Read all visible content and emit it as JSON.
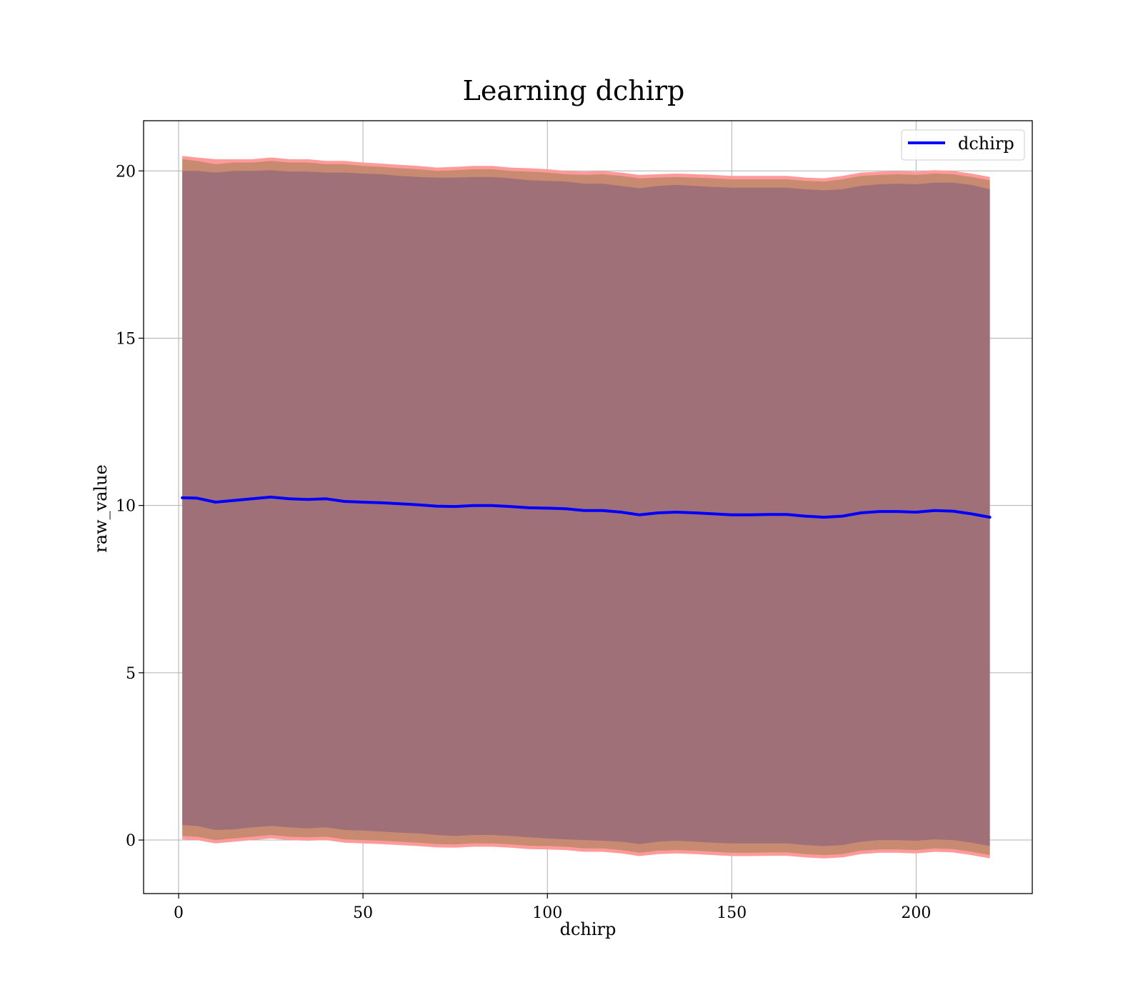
{
  "chart_data": {
    "type": "line",
    "title": "Learning dchirp",
    "xlabel": "dchirp",
    "ylabel": "raw_value",
    "xlim": [
      -9.5,
      231.5
    ],
    "ylim": [
      -1.6,
      21.5
    ],
    "xticks": [
      0,
      50,
      100,
      150,
      200
    ],
    "yticks": [
      0,
      5,
      10,
      15,
      20
    ],
    "grid": true,
    "legend": {
      "placement": "top-right",
      "entries": [
        "dchirp"
      ]
    },
    "colors": {
      "mean_line": "#0000ff",
      "band_outer": "#ff9a9a",
      "band_middle": "#c98a72",
      "band_inner": "#a07078",
      "grid": "#b0b0b0"
    },
    "series": [
      {
        "name": "dchirp",
        "x": [
          1,
          5,
          10,
          15,
          20,
          25,
          30,
          35,
          40,
          45,
          50,
          55,
          60,
          65,
          70,
          75,
          80,
          85,
          90,
          95,
          100,
          105,
          110,
          115,
          120,
          125,
          130,
          135,
          140,
          145,
          150,
          155,
          160,
          165,
          170,
          175,
          180,
          185,
          190,
          195,
          200,
          205,
          210,
          215,
          220
        ],
        "y": [
          10.23,
          10.22,
          10.1,
          10.15,
          10.2,
          10.25,
          10.2,
          10.18,
          10.2,
          10.12,
          10.1,
          10.08,
          10.05,
          10.02,
          9.98,
          9.97,
          10.0,
          10.0,
          9.97,
          9.93,
          9.92,
          9.9,
          9.85,
          9.85,
          9.8,
          9.72,
          9.78,
          9.8,
          9.78,
          9.75,
          9.72,
          9.72,
          9.73,
          9.73,
          9.68,
          9.65,
          9.68,
          9.78,
          9.82,
          9.82,
          9.8,
          9.85,
          9.83,
          9.75,
          9.65
        ]
      }
    ],
    "bands": {
      "outer": {
        "upper": [
          20.45,
          20.4,
          20.35,
          20.35,
          20.35,
          20.4,
          20.35,
          20.35,
          20.3,
          20.3,
          20.25,
          20.22,
          20.18,
          20.15,
          20.1,
          20.12,
          20.15,
          20.15,
          20.1,
          20.08,
          20.05,
          20.0,
          19.98,
          20.0,
          19.95,
          19.88,
          19.9,
          19.92,
          19.9,
          19.88,
          19.85,
          19.85,
          19.85,
          19.85,
          19.8,
          19.78,
          19.85,
          19.95,
          19.98,
          20.0,
          19.98,
          20.02,
          20.0,
          19.92,
          19.82
        ],
        "lower": [
          0.02,
          0.0,
          -0.1,
          -0.05,
          0.0,
          0.05,
          0.0,
          -0.02,
          0.0,
          -0.08,
          -0.1,
          -0.12,
          -0.15,
          -0.18,
          -0.22,
          -0.23,
          -0.2,
          -0.2,
          -0.23,
          -0.27,
          -0.28,
          -0.3,
          -0.35,
          -0.35,
          -0.4,
          -0.48,
          -0.42,
          -0.4,
          -0.42,
          -0.45,
          -0.48,
          -0.48,
          -0.47,
          -0.47,
          -0.52,
          -0.55,
          -0.52,
          -0.42,
          -0.38,
          -0.38,
          -0.4,
          -0.35,
          -0.37,
          -0.45,
          -0.55
        ]
      },
      "middle": {
        "upper": [
          20.35,
          20.3,
          20.2,
          20.25,
          20.25,
          20.3,
          20.25,
          20.25,
          20.2,
          20.2,
          20.15,
          20.12,
          20.08,
          20.05,
          20.0,
          20.02,
          20.05,
          20.05,
          20.0,
          19.98,
          19.95,
          19.9,
          19.88,
          19.9,
          19.85,
          19.78,
          19.8,
          19.82,
          19.8,
          19.78,
          19.75,
          19.75,
          19.75,
          19.75,
          19.7,
          19.68,
          19.75,
          19.85,
          19.88,
          19.9,
          19.88,
          19.92,
          19.9,
          19.82,
          19.72
        ],
        "lower": [
          0.12,
          0.1,
          0.0,
          0.05,
          0.1,
          0.15,
          0.1,
          0.08,
          0.1,
          0.02,
          0.0,
          -0.02,
          -0.05,
          -0.08,
          -0.12,
          -0.13,
          -0.1,
          -0.1,
          -0.13,
          -0.17,
          -0.18,
          -0.2,
          -0.25,
          -0.25,
          -0.3,
          -0.38,
          -0.32,
          -0.3,
          -0.32,
          -0.35,
          -0.38,
          -0.38,
          -0.37,
          -0.37,
          -0.42,
          -0.45,
          -0.42,
          -0.32,
          -0.28,
          -0.28,
          -0.3,
          -0.25,
          -0.27,
          -0.35,
          -0.45
        ]
      },
      "inner": {
        "upper": [
          20.0,
          20.0,
          19.95,
          20.0,
          20.0,
          20.02,
          19.98,
          19.98,
          19.95,
          19.95,
          19.92,
          19.9,
          19.85,
          19.82,
          19.8,
          19.8,
          19.82,
          19.82,
          19.78,
          19.72,
          19.7,
          19.68,
          19.62,
          19.62,
          19.55,
          19.48,
          19.55,
          19.58,
          19.55,
          19.52,
          19.5,
          19.5,
          19.5,
          19.5,
          19.45,
          19.42,
          19.45,
          19.55,
          19.6,
          19.62,
          19.6,
          19.65,
          19.65,
          19.58,
          19.45
        ],
        "lower": [
          0.45,
          0.42,
          0.3,
          0.32,
          0.38,
          0.42,
          0.38,
          0.35,
          0.38,
          0.3,
          0.28,
          0.25,
          0.22,
          0.2,
          0.15,
          0.12,
          0.15,
          0.15,
          0.12,
          0.08,
          0.05,
          0.02,
          0.0,
          -0.02,
          -0.05,
          -0.12,
          -0.05,
          -0.02,
          -0.05,
          -0.08,
          -0.1,
          -0.1,
          -0.1,
          -0.1,
          -0.15,
          -0.18,
          -0.15,
          -0.05,
          0.0,
          0.0,
          -0.02,
          0.02,
          0.0,
          -0.08,
          -0.18
        ]
      }
    }
  }
}
